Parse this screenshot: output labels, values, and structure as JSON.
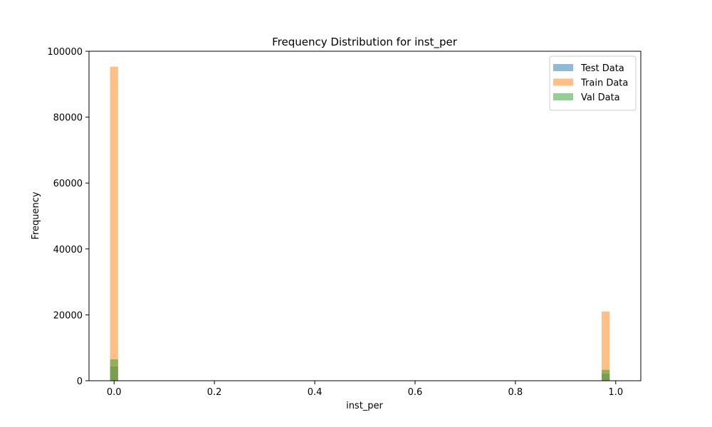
{
  "chart_data": {
    "type": "bar",
    "title": "Frequency Distribution for inst_per",
    "xlabel": "inst_per",
    "ylabel": "Frequency",
    "xlim": [
      -0.05,
      1.05
    ],
    "ylim": [
      0,
      100000
    ],
    "xticks": [
      {
        "value": 0.0,
        "label": "0.0"
      },
      {
        "value": 0.2,
        "label": "0.2"
      },
      {
        "value": 0.4,
        "label": "0.4"
      },
      {
        "value": 0.6,
        "label": "0.6"
      },
      {
        "value": 0.8,
        "label": "0.8"
      },
      {
        "value": 1.0,
        "label": "1.0"
      }
    ],
    "yticks": [
      {
        "value": 0,
        "label": "0"
      },
      {
        "value": 20000,
        "label": "20000"
      },
      {
        "value": 40000,
        "label": "40000"
      },
      {
        "value": 60000,
        "label": "60000"
      },
      {
        "value": 80000,
        "label": "80000"
      },
      {
        "value": 100000,
        "label": "100000"
      }
    ],
    "bin_width": 0.02,
    "grid": false,
    "legend_position": "top-right",
    "series": [
      {
        "name": "Test Data",
        "color": "#1f77b4",
        "opacity": 0.5,
        "bins": [
          {
            "x": 0.0,
            "value": 4300
          },
          {
            "x": 0.98,
            "value": 2100
          }
        ]
      },
      {
        "name": "Train Data",
        "color": "#ff7f0e",
        "opacity": 0.5,
        "bins": [
          {
            "x": 0.0,
            "value": 95300
          },
          {
            "x": 0.98,
            "value": 21000
          }
        ]
      },
      {
        "name": "Val Data",
        "color": "#2ca02c",
        "opacity": 0.5,
        "bins": [
          {
            "x": 0.0,
            "value": 6500
          },
          {
            "x": 0.98,
            "value": 3300
          }
        ]
      }
    ]
  }
}
